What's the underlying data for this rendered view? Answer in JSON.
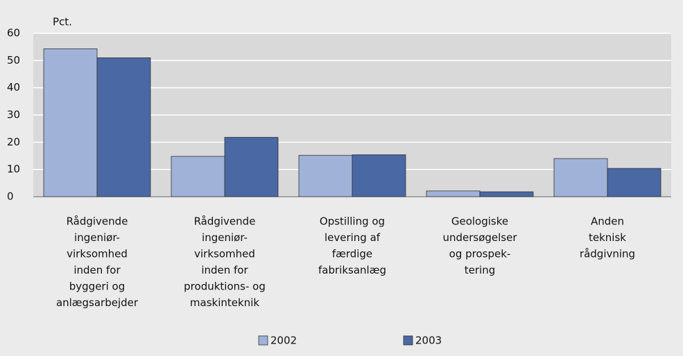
{
  "chart_data": {
    "type": "bar",
    "y_label": "Pct.",
    "categories": [
      [
        "Rådgivende",
        "ingeniør-",
        "virksomhed",
        "inden for",
        "byggeri og",
        "anlægsarbejder"
      ],
      [
        "Rådgivende",
        "ingeniør-",
        "virksomhed",
        "inden for",
        "produktions- og",
        "maskinteknik"
      ],
      [
        "Opstilling og",
        "levering af",
        "færdige",
        "fabriksanlæg"
      ],
      [
        "Geologiske",
        "undersøgelser",
        "og prospek-",
        "tering"
      ],
      [
        "Anden",
        "teknisk",
        "rådgivning"
      ]
    ],
    "series": [
      {
        "name": "2002",
        "color": "#a0b2d8",
        "values": [
          54.3,
          14.8,
          15.2,
          2.1,
          14.0
        ]
      },
      {
        "name": "2003",
        "color": "#4a68a3",
        "values": [
          51.0,
          21.8,
          15.4,
          1.8,
          10.4
        ]
      }
    ],
    "ylim": [
      0,
      60
    ],
    "yticks": [
      0,
      10,
      20,
      30,
      40,
      50,
      60
    ],
    "grid": true,
    "legend": "bottom"
  }
}
